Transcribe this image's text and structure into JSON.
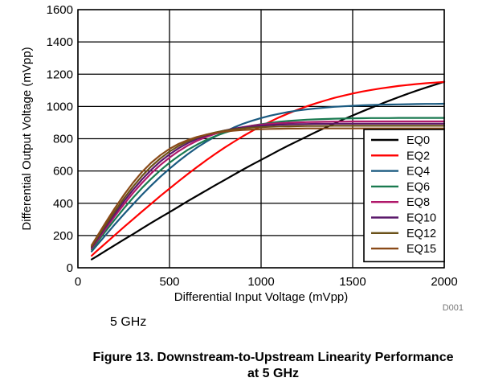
{
  "chart_data": {
    "type": "line",
    "xlabel": "Differential Input Voltage (mVpp)",
    "ylabel": "Differential Output Voltage (mVpp)",
    "xlim": [
      0,
      2000
    ],
    "ylim": [
      0,
      1600
    ],
    "xticks": [
      0,
      500,
      1000,
      1500,
      2000
    ],
    "yticks": [
      0,
      200,
      400,
      600,
      800,
      1000,
      1200,
      1400,
      1600
    ],
    "grid": true,
    "legend_position": "bottom-right",
    "x": [
      75,
      100,
      150,
      200,
      250,
      300,
      350,
      400,
      450,
      500,
      550,
      600,
      650,
      700,
      750,
      800,
      850,
      900,
      950,
      1000,
      1050,
      1100,
      1150,
      1200,
      1250,
      1300,
      1350,
      1400,
      1450,
      1500,
      1550,
      1600,
      1650,
      1700,
      1750,
      1800,
      1850,
      1900,
      1950,
      2000
    ],
    "series": [
      {
        "name": "EQ0",
        "color": "#000000",
        "values": [
          52,
          69,
          104,
          139,
          174,
          208,
          243,
          278,
          312,
          345,
          379,
          413,
          446,
          479,
          512,
          544,
          576,
          608,
          639,
          669,
          699,
          729,
          758,
          786,
          814,
          842,
          868,
          894,
          920,
          944,
          968,
          991,
          1014,
          1036,
          1057,
          1078,
          1098,
          1117,
          1135,
          1153
        ]
      },
      {
        "name": "EQ2",
        "color": "#ff0000",
        "values": [
          75,
          101,
          151,
          201,
          251,
          300,
          349,
          397,
          445,
          491,
          537,
          581,
          624,
          666,
          706,
          744,
          780,
          815,
          847,
          878,
          906,
          933,
          957,
          980,
          1001,
          1020,
          1037,
          1053,
          1067,
          1080,
          1092,
          1102,
          1111,
          1119,
          1127,
          1133,
          1139,
          1144,
          1148,
          1152
        ]
      },
      {
        "name": "EQ4",
        "color": "#1a5a80",
        "values": [
          101,
          135,
          201,
          267,
          331,
          393,
          453,
          510,
          564,
          614,
          661,
          705,
          745,
          781,
          814,
          843,
          869,
          892,
          911,
          928,
          943,
          955,
          966,
          975,
          982,
          988,
          993,
          998,
          1001,
          1004,
          1007,
          1009,
          1011,
          1012,
          1013,
          1014,
          1015,
          1016,
          1016,
          1017
        ]
      },
      {
        "name": "EQ6",
        "color": "#1a7a50",
        "values": [
          112,
          150,
          225,
          297,
          367,
          433,
          495,
          552,
          604,
          651,
          693,
          731,
          763,
          792,
          816,
          837,
          854,
          869,
          881,
          890,
          898,
          905,
          910,
          914,
          918,
          920,
          922,
          924,
          925,
          926,
          927,
          928,
          928,
          928,
          929,
          929,
          929,
          929,
          929,
          929
        ]
      },
      {
        "name": "EQ8",
        "color": "#b0186a",
        "values": [
          120,
          160,
          240,
          318,
          392,
          462,
          526,
          585,
          637,
          683,
          723,
          758,
          787,
          811,
          831,
          848,
          861,
          872,
          880,
          887,
          892,
          896,
          899,
          901,
          903,
          904,
          905,
          906,
          906,
          907,
          907,
          907,
          907,
          907,
          907,
          907,
          907,
          907,
          907,
          907
        ]
      },
      {
        "name": "EQ10",
        "color": "#5a186a",
        "values": [
          126,
          168,
          252,
          333,
          410,
          482,
          548,
          607,
          659,
          703,
          741,
          773,
          799,
          820,
          837,
          851,
          862,
          870,
          876,
          881,
          884,
          887,
          889,
          890,
          891,
          892,
          892,
          893,
          893,
          893,
          893,
          893,
          893,
          893,
          893,
          893,
          893,
          893,
          893,
          893
        ]
      },
      {
        "name": "EQ12",
        "color": "#6a5018",
        "values": [
          132,
          176,
          263,
          348,
          428,
          502,
          569,
          628,
          678,
          720,
          755,
          784,
          807,
          825,
          839,
          850,
          858,
          864,
          869,
          872,
          874,
          876,
          877,
          878,
          879,
          879,
          879,
          880,
          880,
          880,
          880,
          880,
          880,
          880,
          880,
          880,
          880,
          880,
          880,
          880
        ]
      },
      {
        "name": "EQ15",
        "color": "#8a4a18",
        "values": [
          140,
          186,
          278,
          367,
          450,
          526,
          594,
          651,
          698,
          737,
          768,
          792,
          811,
          825,
          836,
          844,
          850,
          854,
          857,
          859,
          861,
          862,
          863,
          863,
          864,
          864,
          864,
          864,
          864,
          864,
          864,
          864,
          864,
          864,
          864,
          864,
          864,
          864,
          864,
          864
        ]
      }
    ]
  },
  "figure_code": "D001",
  "frequency_note": "5 GHz",
  "caption": {
    "line1": "Figure 13. Downstream-to-Upstream Linearity Performance",
    "line2": "at 5 GHz"
  }
}
